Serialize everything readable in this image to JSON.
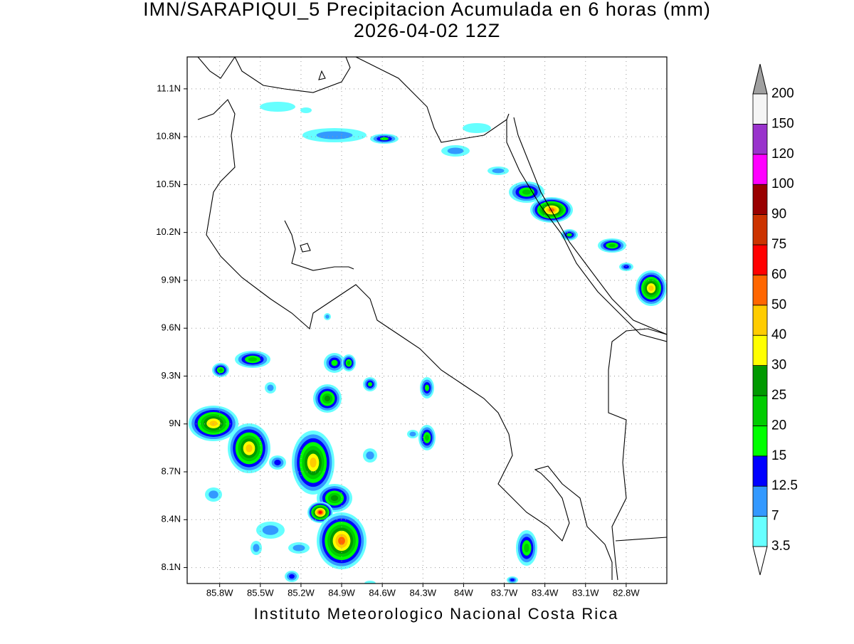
{
  "title": "IMN/SARAPIQUI_5 Precipitacion Acumulada en 6 horas (mm)",
  "subtitle": "2026-04-02 12Z",
  "map": {
    "lon_range": [
      -86.04,
      -82.5
    ],
    "lat_range": [
      8.0,
      11.3
    ],
    "lon_ticks": [
      {
        "value": -85.8,
        "label": "85.8W"
      },
      {
        "value": -85.5,
        "label": "85.5W"
      },
      {
        "value": -85.2,
        "label": "85.2W"
      },
      {
        "value": -84.9,
        "label": "84.9W"
      },
      {
        "value": -84.6,
        "label": "84.6W"
      },
      {
        "value": -84.3,
        "label": "84.3W"
      },
      {
        "value": -84,
        "label": "84W"
      },
      {
        "value": -83.7,
        "label": "83.7W"
      },
      {
        "value": -83.4,
        "label": "83.4W"
      },
      {
        "value": -83.1,
        "label": "83.1W"
      },
      {
        "value": -82.8,
        "label": "82.8W"
      }
    ],
    "lat_ticks": [
      {
        "value": 8.1,
        "label": "8.1N"
      },
      {
        "value": 8.4,
        "label": "8.4N"
      },
      {
        "value": 8.7,
        "label": "8.7N"
      },
      {
        "value": 9,
        "label": "9N"
      },
      {
        "value": 9.3,
        "label": "9.3N"
      },
      {
        "value": 9.6,
        "label": "9.6N"
      },
      {
        "value": 9.9,
        "label": "9.9N"
      },
      {
        "value": 10.2,
        "label": "10.2N"
      },
      {
        "value": 10.5,
        "label": "10.5N"
      },
      {
        "value": 10.8,
        "label": "10.8N"
      },
      {
        "value": 11.1,
        "label": "11.1N"
      }
    ]
  },
  "colorbar": {
    "levels": [
      3.5,
      7,
      12.5,
      15,
      20,
      25,
      30,
      40,
      50,
      60,
      75,
      90,
      100,
      120,
      150,
      200
    ],
    "colors": [
      "#66ffff",
      "#3399ff",
      "#0000ff",
      "#00ff00",
      "#00cc00",
      "#009900",
      "#ffff00",
      "#ffcc00",
      "#ff6600",
      "#ff0000",
      "#cc3300",
      "#990000",
      "#ff00ff",
      "#9933cc",
      "#f5f5f5"
    ],
    "under_color": "#ffffff",
    "over_color": "#a0a0a0"
  },
  "footer": "Instituto Meteorologico Nacional Costa Rica"
}
